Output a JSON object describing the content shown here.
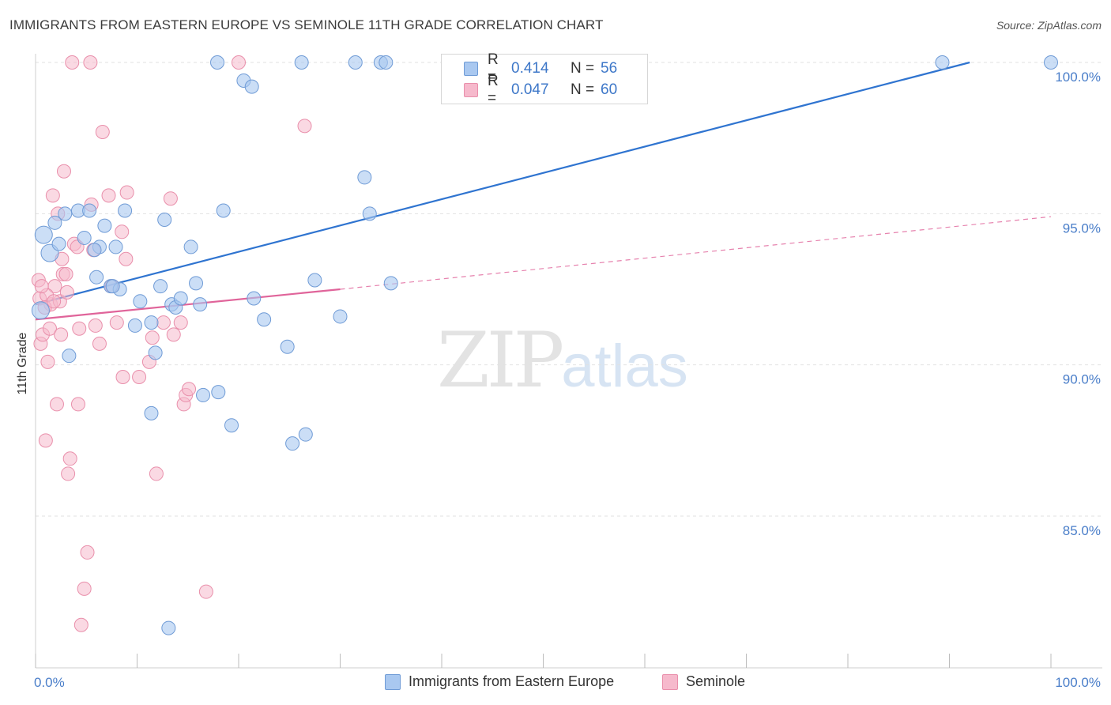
{
  "title": "IMMIGRANTS FROM EASTERN EUROPE VS SEMINOLE 11TH GRADE CORRELATION CHART",
  "source": "Source: ZipAtlas.com",
  "watermark": {
    "zip": "ZIP",
    "atlas": "atlas"
  },
  "legend": {
    "blue": {
      "r_label": "R =",
      "r_value": "0.414",
      "n_label": "N =",
      "n_value": "56"
    },
    "pink": {
      "r_label": "R =",
      "r_value": "0.047",
      "n_label": "N =",
      "n_value": "60"
    }
  },
  "colors": {
    "blue_fill": "#a9c8f0",
    "blue_stroke": "#6f9bd6",
    "blue_line": "#2f74d0",
    "pink_fill": "#f6b9cc",
    "pink_stroke": "#e98fab",
    "pink_line": "#e0649a",
    "grid": "#e2e2e2",
    "tick_text": "#4a7ec9"
  },
  "chart_data": {
    "type": "scatter",
    "title": "IMMIGRANTS FROM EASTERN EUROPE VS SEMINOLE 11TH GRADE CORRELATION CHART",
    "xlabel": "",
    "ylabel": "11th Grade",
    "xlim": [
      0,
      100
    ],
    "ylim": [
      80.5,
      100.5
    ],
    "x_tick_labels": [
      {
        "v": 0,
        "label": "0.0%"
      },
      {
        "v": 100,
        "label": "100.0%"
      }
    ],
    "y_tick_labels": [
      {
        "v": 100,
        "label": "100.0%"
      },
      {
        "v": 95,
        "label": "95.0%"
      },
      {
        "v": 90,
        "label": "90.0%"
      },
      {
        "v": 85,
        "label": "85.0%"
      }
    ],
    "grid": true,
    "legend_position": "top-center",
    "series": [
      {
        "name": "Immigrants from Eastern Europe",
        "color": "#a9c8f0",
        "trend": {
          "x": [
            0,
            92
          ],
          "y": [
            92.0,
            100.0
          ],
          "style": "solid"
        },
        "points": [
          [
            0.5,
            91.8
          ],
          [
            0.8,
            94.3
          ],
          [
            1.4,
            93.7
          ],
          [
            1.9,
            94.7
          ],
          [
            2.3,
            94.0
          ],
          [
            2.9,
            95.0
          ],
          [
            3.3,
            90.3
          ],
          [
            4.2,
            95.1
          ],
          [
            4.8,
            94.2
          ],
          [
            5.3,
            95.1
          ],
          [
            6.0,
            92.9
          ],
          [
            6.3,
            93.9
          ],
          [
            6.8,
            94.6
          ],
          [
            7.4,
            92.6
          ],
          [
            7.9,
            93.9
          ],
          [
            8.3,
            92.5
          ],
          [
            8.8,
            95.1
          ],
          [
            9.8,
            91.3
          ],
          [
            10.3,
            92.1
          ],
          [
            11.4,
            91.4
          ],
          [
            11.4,
            88.4
          ],
          [
            11.8,
            90.4
          ],
          [
            12.3,
            92.6
          ],
          [
            12.7,
            94.8
          ],
          [
            13.1,
            81.3
          ],
          [
            13.4,
            92.0
          ],
          [
            13.8,
            91.9
          ],
          [
            14.3,
            92.2
          ],
          [
            15.3,
            93.9
          ],
          [
            15.8,
            92.7
          ],
          [
            16.2,
            92.0
          ],
          [
            16.5,
            89.0
          ],
          [
            18.0,
            89.1
          ],
          [
            18.5,
            95.1
          ],
          [
            19.3,
            88.0
          ],
          [
            20.5,
            99.4
          ],
          [
            21.3,
            99.2
          ],
          [
            21.5,
            92.2
          ],
          [
            22.5,
            91.5
          ],
          [
            24.8,
            90.6
          ],
          [
            25.3,
            87.4
          ],
          [
            26.6,
            87.7
          ],
          [
            27.5,
            92.8
          ],
          [
            30.0,
            91.6
          ],
          [
            32.4,
            96.2
          ],
          [
            32.9,
            95.0
          ],
          [
            35.0,
            92.7
          ],
          [
            17.9,
            100.0
          ],
          [
            26.2,
            100.0
          ],
          [
            31.5,
            100.0
          ],
          [
            34.0,
            100.0
          ],
          [
            34.5,
            100.0
          ],
          [
            89.3,
            100.0
          ],
          [
            100.0,
            100.0
          ],
          [
            5.8,
            93.8
          ],
          [
            7.6,
            92.6
          ]
        ]
      },
      {
        "name": "Seminole",
        "color": "#f6b9cc",
        "trend": {
          "x": [
            0,
            30
          ],
          "y": [
            91.5,
            92.5
          ],
          "style": "solid",
          "extension": {
            "x": [
              30,
              100
            ],
            "y": [
              92.5,
              94.9
            ],
            "style": "dashed"
          }
        },
        "points": [
          [
            0.3,
            92.8
          ],
          [
            0.5,
            90.7
          ],
          [
            0.7,
            91.0
          ],
          [
            1.0,
            87.5
          ],
          [
            1.2,
            90.1
          ],
          [
            1.4,
            91.2
          ],
          [
            1.5,
            92.0
          ],
          [
            1.7,
            95.6
          ],
          [
            1.9,
            92.6
          ],
          [
            2.1,
            88.7
          ],
          [
            2.2,
            95.0
          ],
          [
            2.5,
            91.0
          ],
          [
            2.7,
            93.0
          ],
          [
            2.8,
            96.4
          ],
          [
            3.0,
            93.0
          ],
          [
            3.2,
            86.4
          ],
          [
            3.4,
            86.9
          ],
          [
            3.6,
            100.0
          ],
          [
            3.8,
            94.0
          ],
          [
            4.1,
            93.9
          ],
          [
            4.2,
            88.7
          ],
          [
            4.3,
            91.2
          ],
          [
            4.5,
            81.4
          ],
          [
            4.8,
            82.6
          ],
          [
            5.1,
            83.8
          ],
          [
            5.5,
            95.3
          ],
          [
            5.7,
            93.8
          ],
          [
            5.9,
            91.3
          ],
          [
            6.3,
            90.7
          ],
          [
            6.6,
            97.7
          ],
          [
            7.2,
            95.6
          ],
          [
            7.5,
            92.6
          ],
          [
            8.0,
            91.4
          ],
          [
            8.5,
            94.4
          ],
          [
            8.6,
            89.6
          ],
          [
            8.9,
            93.5
          ],
          [
            9.0,
            95.7
          ],
          [
            10.2,
            89.6
          ],
          [
            11.2,
            90.1
          ],
          [
            11.5,
            90.9
          ],
          [
            11.9,
            86.4
          ],
          [
            12.6,
            91.4
          ],
          [
            13.3,
            95.5
          ],
          [
            13.6,
            91.0
          ],
          [
            14.3,
            91.4
          ],
          [
            14.6,
            88.7
          ],
          [
            14.8,
            89.0
          ],
          [
            15.1,
            89.2
          ],
          [
            16.8,
            82.5
          ],
          [
            20.0,
            100.0
          ],
          [
            26.5,
            97.9
          ],
          [
            5.4,
            100.0
          ],
          [
            0.4,
            92.2
          ],
          [
            1.1,
            92.3
          ],
          [
            2.4,
            92.1
          ],
          [
            3.1,
            92.4
          ],
          [
            0.9,
            91.9
          ],
          [
            0.6,
            92.6
          ],
          [
            1.8,
            92.1
          ],
          [
            2.6,
            93.5
          ]
        ]
      }
    ]
  },
  "bottom_legend": {
    "blue_label": "Immigrants from Eastern Europe",
    "pink_label": "Seminole"
  }
}
